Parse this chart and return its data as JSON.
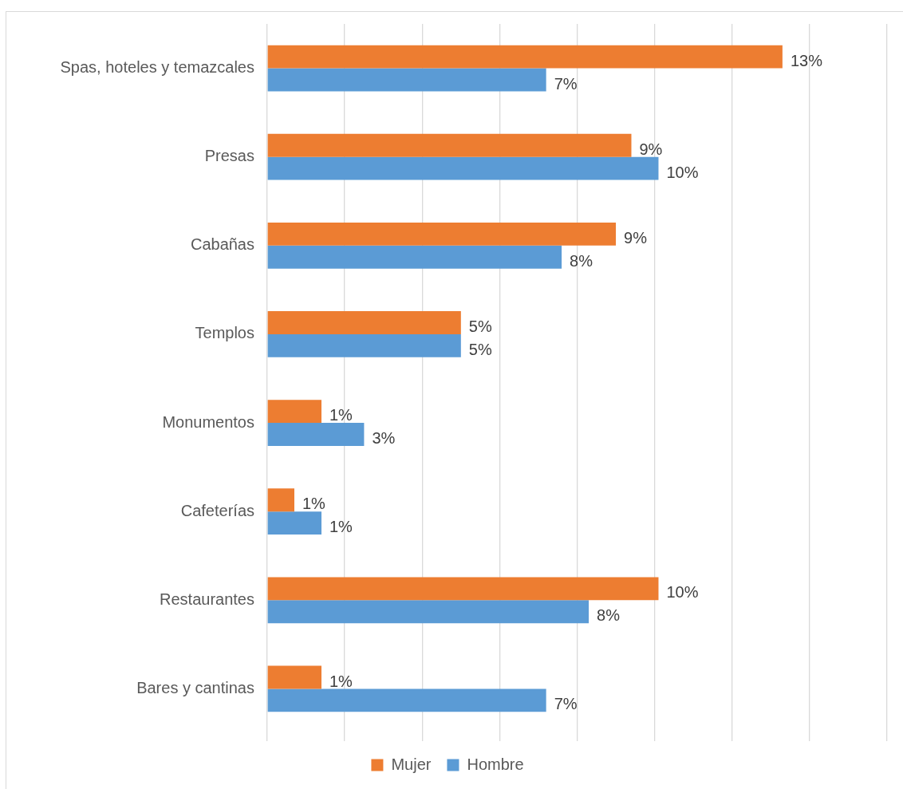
{
  "chart_data": {
    "type": "bar",
    "orientation": "horizontal",
    "categories": [
      "Spas, hoteles y temazcales",
      "Presas",
      "Cabañas",
      "Templos",
      "Monumentos",
      "Cafeterías",
      "Restaurantes",
      "Bares y cantinas"
    ],
    "series": [
      {
        "name": "Mujer",
        "color": "#ed7d31",
        "values": [
          13.3,
          9.4,
          9.0,
          5.0,
          1.4,
          0.7,
          10.1,
          1.4
        ],
        "value_labels": [
          "13%",
          "9%",
          "9%",
          "5%",
          "1%",
          "1%",
          "10%",
          "1%"
        ]
      },
      {
        "name": "Hombre",
        "color": "#5b9bd5",
        "values": [
          7.2,
          10.1,
          7.6,
          5.0,
          2.5,
          1.4,
          8.3,
          7.2
        ],
        "value_labels": [
          "7%",
          "10%",
          "8%",
          "5%",
          "3%",
          "1%",
          "8%",
          "7%"
        ]
      }
    ],
    "xlim": [
      0,
      16
    ],
    "xticks": [
      {
        "value": 0,
        "label": null
      },
      {
        "value": 2,
        "label": null
      },
      {
        "value": 4,
        "label": null
      },
      {
        "value": 6,
        "label": null
      },
      {
        "value": 8,
        "label": null
      },
      {
        "value": 10,
        "label": null
      },
      {
        "value": 12,
        "label": null
      },
      {
        "value": 14,
        "label": null
      },
      {
        "value": 16,
        "label": null
      }
    ],
    "grid": "x",
    "legend": "bottom",
    "tick_labels": "y"
  }
}
